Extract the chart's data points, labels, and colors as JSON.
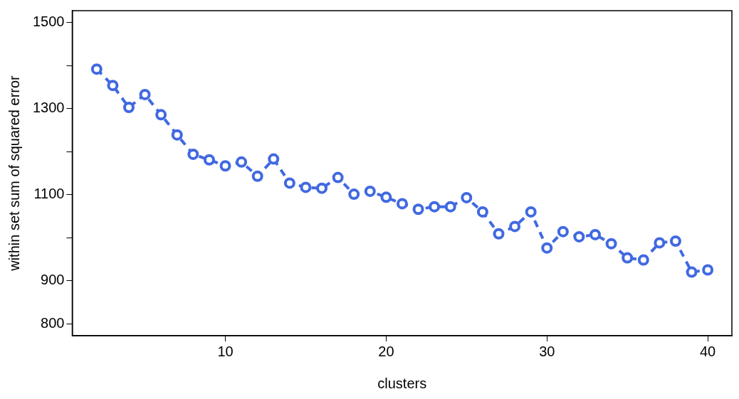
{
  "chart_data": {
    "type": "line",
    "xlabel": "clusters",
    "ylabel": "within set sum of squared error",
    "x": [
      2,
      3,
      4,
      5,
      6,
      7,
      8,
      9,
      10,
      11,
      12,
      13,
      14,
      15,
      16,
      17,
      18,
      19,
      20,
      21,
      22,
      23,
      24,
      25,
      26,
      27,
      28,
      29,
      30,
      31,
      32,
      33,
      34,
      35,
      36,
      37,
      38,
      39,
      40
    ],
    "series": [
      {
        "color": "#4169e1",
        "values": [
          1392,
          1354,
          1303,
          1333,
          1286,
          1239,
          1194,
          1181,
          1167,
          1176,
          1143,
          1183,
          1127,
          1117,
          1115,
          1140,
          1101,
          1108,
          1094,
          1079,
          1066,
          1072,
          1072,
          1093,
          1060,
          1009,
          1026,
          1060,
          976,
          1014,
          1002,
          1007,
          986,
          953,
          948,
          988,
          992,
          920,
          925
        ]
      }
    ],
    "xlim": [
      0.48,
      41.5
    ],
    "xticks": [
      10,
      20,
      30,
      40
    ],
    "ylim": [
      772,
      1528
    ],
    "yticks": [
      800,
      900,
      {
        "value": 1000,
        "label": null
      },
      1100,
      {
        "value": 1200,
        "label": null
      },
      1300,
      {
        "value": 1400,
        "label": null
      },
      1500
    ],
    "grid": false,
    "legend": false,
    "marker": "circle",
    "line_style": "dashed"
  }
}
